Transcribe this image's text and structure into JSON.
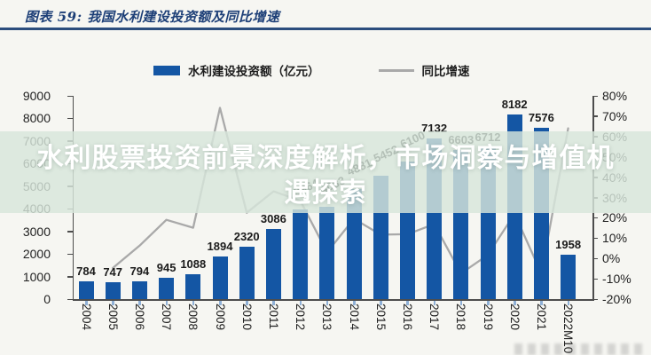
{
  "header": {
    "title": "图表 59: 我国水利建设投资额及同比增速"
  },
  "legend": {
    "investment": {
      "label": "水利建设投资额（亿元）",
      "swatch_color": "#1456a4"
    },
    "growth": {
      "label": "同比增速",
      "swatch_color": "#a9a9a9"
    }
  },
  "overlay": {
    "line1": "水利股票投资前景深度解析，市场洞察与增值机",
    "line2": "遇探索",
    "full_text": "水利股票投资前景深度解析，市场洞察与增值机遇探索",
    "band_color": "rgba(215,229,218,0.82)",
    "text_color": "#ffffff"
  },
  "chart_data": {
    "type": "bar",
    "combo": "bar+line",
    "title": "我国水利建设投资额及同比增速",
    "categories": [
      "2004",
      "2005",
      "2006",
      "2007",
      "2008",
      "2009",
      "2010",
      "2011",
      "2012",
      "2013",
      "2014",
      "2015",
      "2016",
      "2017",
      "2018",
      "2019",
      "2020",
      "2021",
      "2022M10"
    ],
    "series": [
      {
        "name": "水利建设投资额（亿元）",
        "type": "bar",
        "axis": "left",
        "color": "#1456a4",
        "values": [
          784,
          747,
          794,
          945,
          1088,
          1894,
          2320,
          3086,
          3964,
          4083,
          4881,
          5452,
          6100,
          7132,
          6603,
          6712,
          8182,
          7576,
          1958
        ],
        "labels": [
          "784",
          "747",
          "794",
          "945",
          "1088",
          "1894",
          "2320",
          "3086",
          "3964",
          "4083",
          "4881",
          "5452",
          "6100",
          "7132",
          "6603",
          "6712",
          "8182",
          "7576",
          "1958"
        ]
      },
      {
        "name": "同比增速",
        "type": "line",
        "axis": "right",
        "color": "#a9a9a9",
        "values_percent": [
          null,
          -4.7,
          6.3,
          19.0,
          15.1,
          74.1,
          22.5,
          33.0,
          28.4,
          3.0,
          19.5,
          11.7,
          11.9,
          16.9,
          -7.4,
          1.7,
          21.9,
          -7.4,
          64.0
        ]
      }
    ],
    "left_axis": {
      "min": 0,
      "max": 9000,
      "step": 1000,
      "tick_labels": [
        "9000",
        "8000",
        "7000",
        "6000",
        "5000",
        "4000",
        "3000",
        "2000",
        "1000",
        "0"
      ]
    },
    "right_axis": {
      "min": -20,
      "max": 80,
      "step": 10,
      "tick_labels": [
        "80%",
        "70%",
        "60%",
        "50%",
        "40%",
        "30%",
        "20%",
        "10%",
        "0%",
        "-10%",
        "-20%"
      ]
    },
    "grid": false,
    "legend_position": "top",
    "rotated_label_indices": [
      8,
      9,
      10,
      11,
      12
    ]
  }
}
